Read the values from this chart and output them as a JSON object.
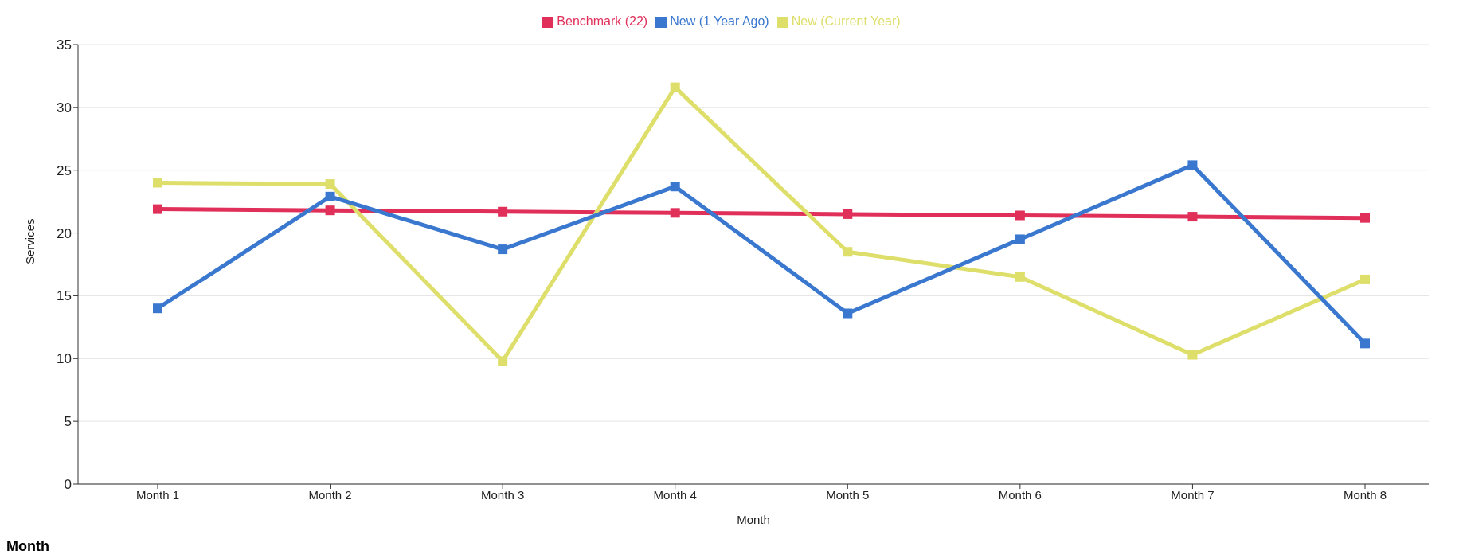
{
  "chart_data": {
    "type": "line",
    "xlabel": "Month",
    "ylabel": "Services",
    "categories": [
      "Month 1",
      "Month 2",
      "Month 3",
      "Month 4",
      "Month 5",
      "Month 6",
      "Month 7",
      "Month 8"
    ],
    "series": [
      {
        "name": "Benchmark (22)",
        "color": "#e0305a",
        "values": [
          21.9,
          21.8,
          21.7,
          21.6,
          21.5,
          21.4,
          21.3,
          21.2
        ]
      },
      {
        "name": "New (Current Year)",
        "color": "#dede6a",
        "values": [
          24,
          23.9,
          9.8,
          31.6,
          18.5,
          16.5,
          10.3,
          16.3
        ]
      },
      {
        "name": "New (1 Year Ago)",
        "color": "#3a78d0",
        "values": [
          14,
          22.9,
          18.7,
          23.7,
          13.6,
          19.5,
          25.4,
          11.2
        ]
      }
    ],
    "ylim": [
      0,
      35
    ],
    "yticks": [
      0,
      5,
      10,
      15,
      20,
      25,
      30,
      35
    ],
    "grid": "y",
    "legend": "top",
    "marker": "square",
    "line_style": "solid",
    "annotations": [
      "Month"
    ]
  }
}
